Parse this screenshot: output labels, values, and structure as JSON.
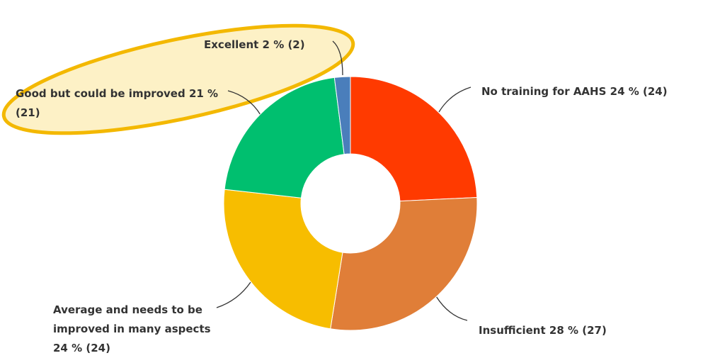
{
  "chart_data": {
    "type": "donut",
    "categories": [
      "No training for AAHS",
      "Insufficient",
      "Average and needs to be improved in many aspects",
      "Good but could be improved",
      "Excellent"
    ],
    "values": [
      24,
      28,
      24,
      21,
      2
    ],
    "value_labels": [
      "24 % (24)",
      "28 % (27)",
      "24 % (24)",
      "21 % (21)",
      "2 % (2)"
    ],
    "colors": [
      "#ff3a00",
      "#e07e38",
      "#f7bd00",
      "#00bf6f",
      "#4a7ebb"
    ]
  }
}
